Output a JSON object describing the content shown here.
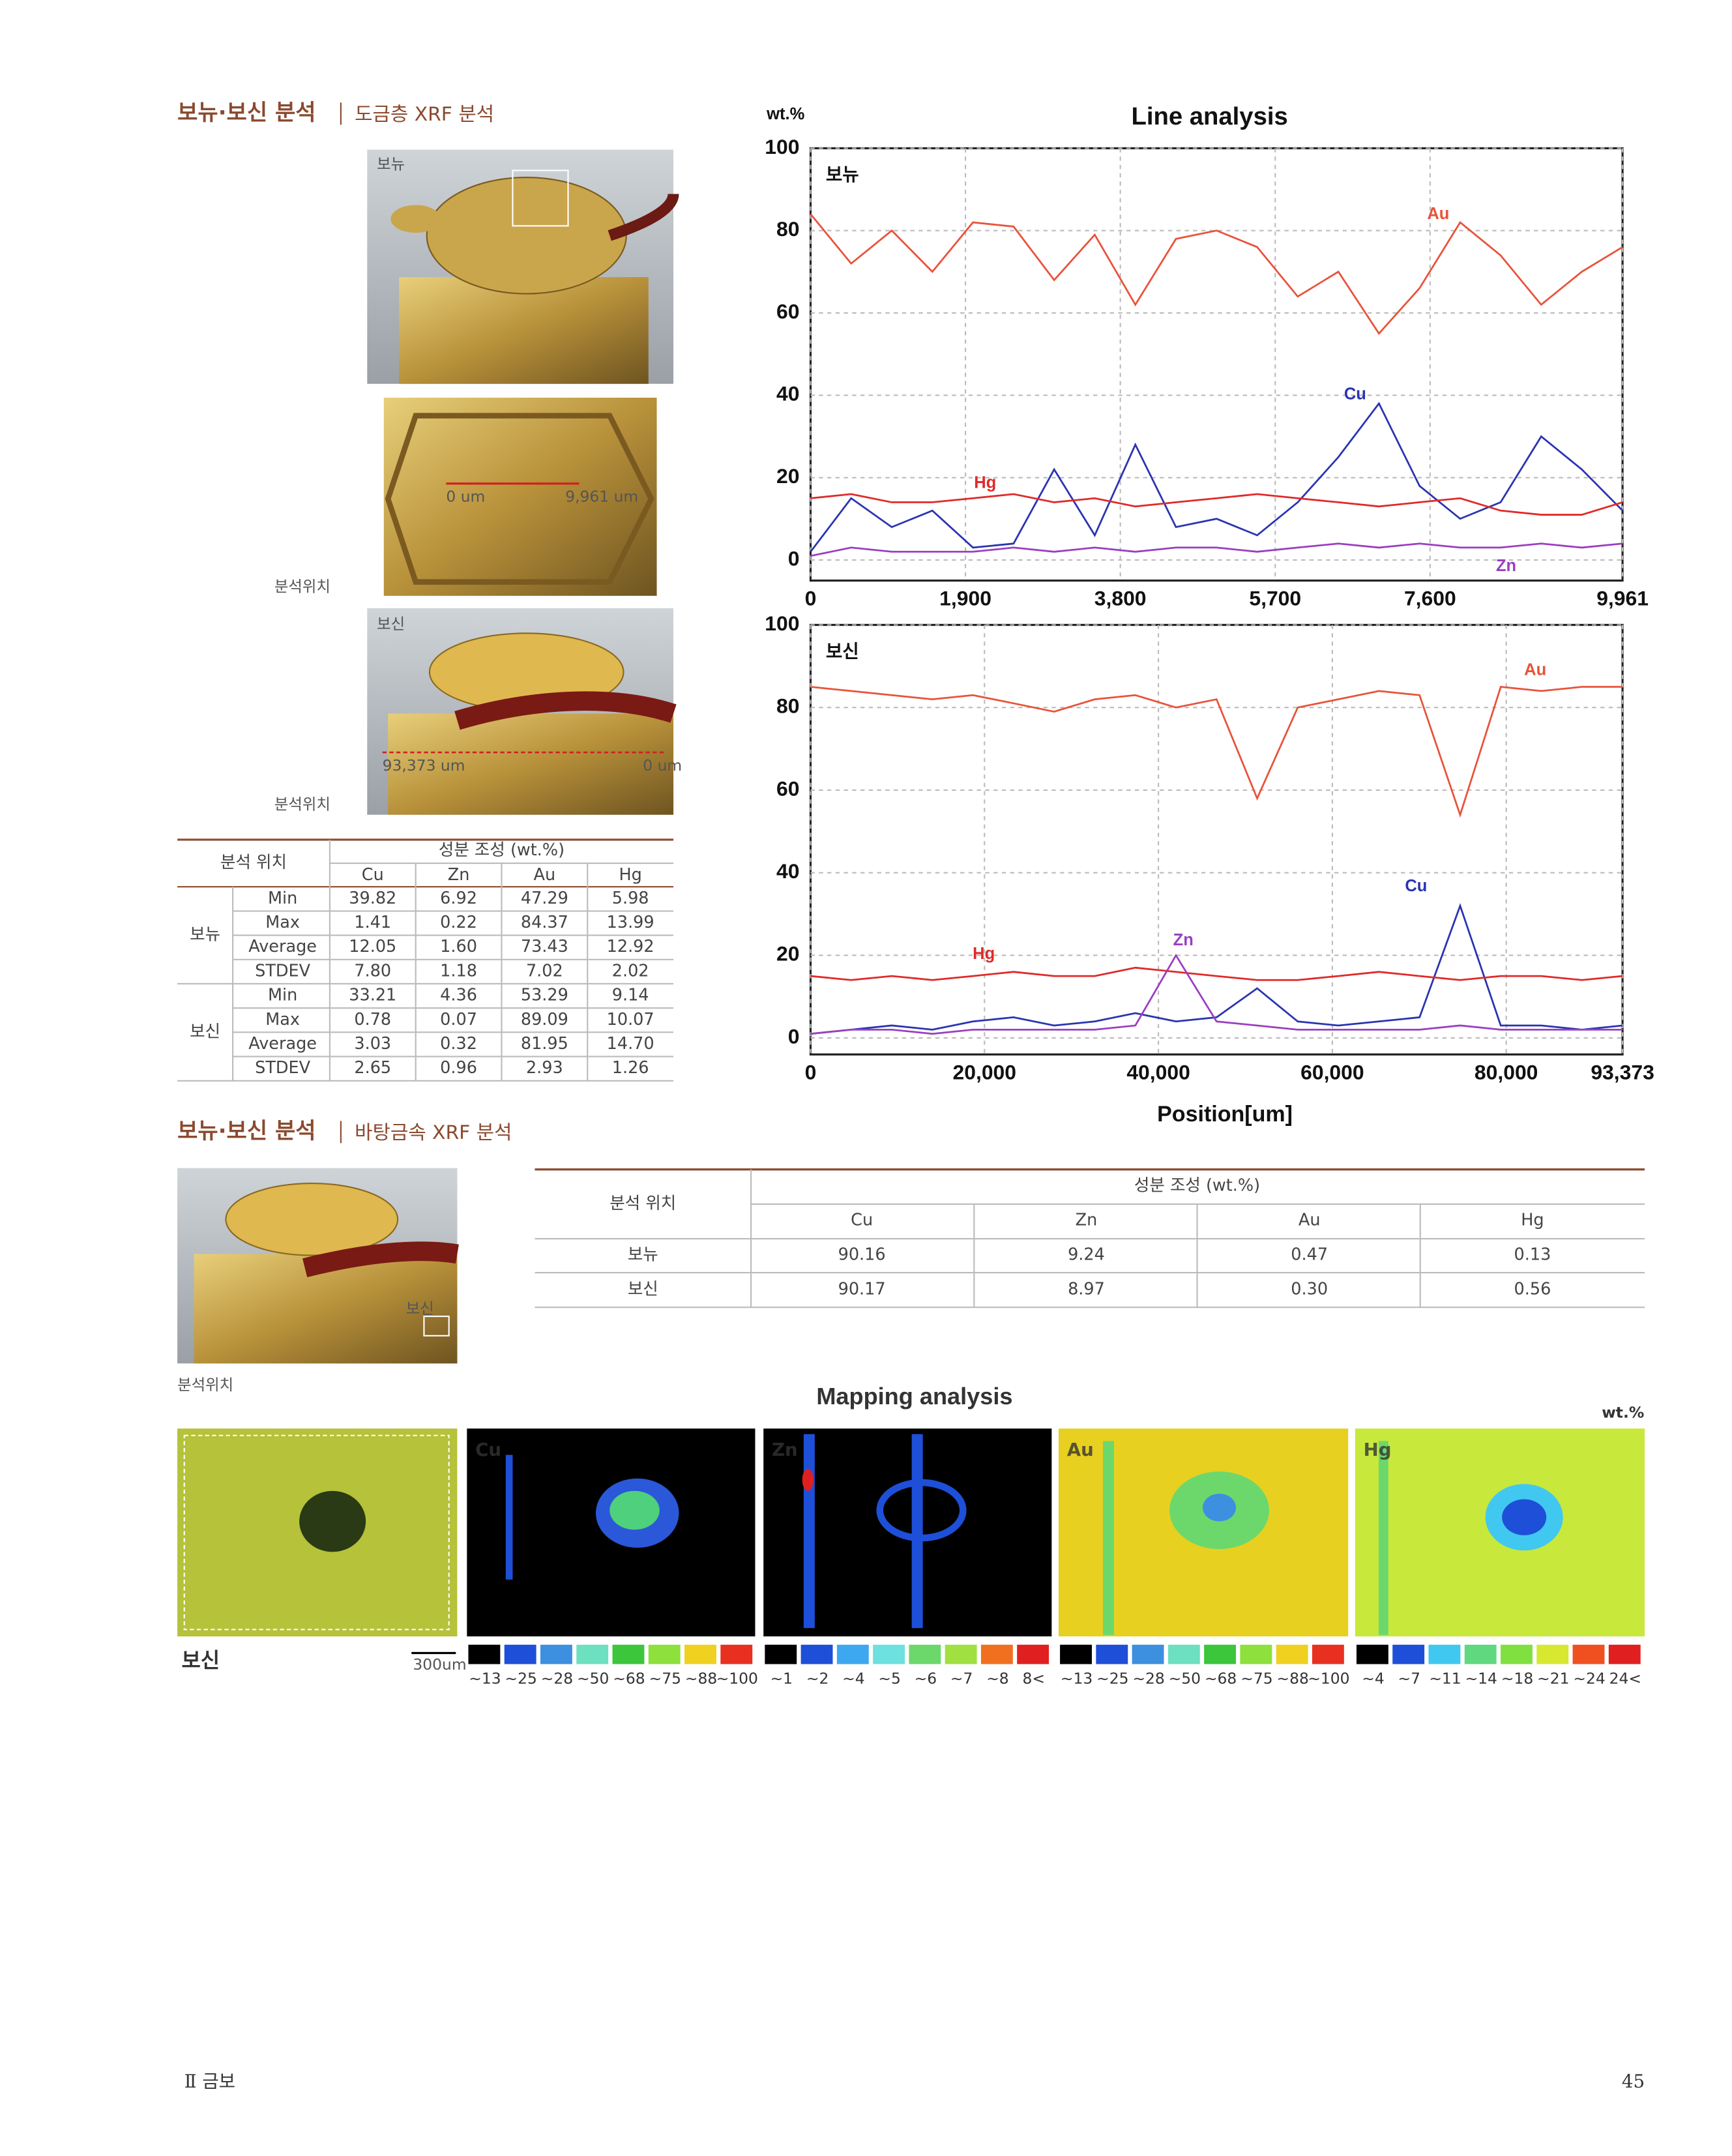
{
  "section1": {
    "title": "보뉴·보신 분석",
    "subtitle": "도금층 XRF 분석"
  },
  "photos": {
    "bonyu_label": "보뉴",
    "bonyu_location": "분석위치",
    "scale_start": "0 um",
    "scale_end": "9,961 um",
    "bosin_label": "보신",
    "bosin_location": "분석위치",
    "scan_start": "93,373 um",
    "scan_end": "0 um"
  },
  "table1": {
    "location_header": "분석 위치",
    "composition_header": "성분 조성 (wt.%)",
    "columns": [
      "Cu",
      "Zn",
      "Au",
      "Hg"
    ],
    "groups": [
      {
        "name": "보뉴",
        "rows": [
          {
            "stat": "Min",
            "values": [
              "39.82",
              "6.92",
              "47.29",
              "5.98"
            ]
          },
          {
            "stat": "Max",
            "values": [
              "1.41",
              "0.22",
              "84.37",
              "13.99"
            ]
          },
          {
            "stat": "Average",
            "values": [
              "12.05",
              "1.60",
              "73.43",
              "12.92"
            ]
          },
          {
            "stat": "STDEV",
            "values": [
              "7.80",
              "1.18",
              "7.02",
              "2.02"
            ]
          }
        ]
      },
      {
        "name": "보신",
        "rows": [
          {
            "stat": "Min",
            "values": [
              "33.21",
              "4.36",
              "53.29",
              "9.14"
            ]
          },
          {
            "stat": "Max",
            "values": [
              "0.78",
              "0.07",
              "89.09",
              "10.07"
            ]
          },
          {
            "stat": "Average",
            "values": [
              "3.03",
              "0.32",
              "81.95",
              "14.70"
            ]
          },
          {
            "stat": "STDEV",
            "values": [
              "2.65",
              "0.96",
              "2.93",
              "1.26"
            ]
          }
        ]
      }
    ]
  },
  "section2": {
    "title": "보뉴·보신 분석",
    "subtitle": "바탕금속 XRF 분석"
  },
  "photo2": {
    "label": "보신",
    "location": "분석위치"
  },
  "table2": {
    "location_header": "분석 위치",
    "composition_header": "성분 조성 (wt.%)",
    "columns": [
      "Cu",
      "Zn",
      "Au",
      "Hg"
    ],
    "rows": [
      {
        "location": "보뉴",
        "values": [
          "90.16",
          "9.24",
          "0.47",
          "0.13"
        ]
      },
      {
        "location": "보신",
        "values": [
          "90.17",
          "8.97",
          "0.30",
          "0.56"
        ]
      }
    ]
  },
  "mapping": {
    "title": "Mapping analysis",
    "unit": "wt.%",
    "sample_label": "보신",
    "scale": "300um",
    "maps": [
      {
        "element": "Cu",
        "legend": [
          "~13",
          "~25",
          "~28",
          "~50",
          "~68",
          "~75",
          "~88",
          "~100"
        ]
      },
      {
        "element": "Zn",
        "legend": [
          "~1",
          "~2",
          "~4",
          "~5",
          "~6",
          "~7",
          "~8",
          "8<"
        ]
      },
      {
        "element": "Au",
        "legend": [
          "~13",
          "~25",
          "~28",
          "~50",
          "~68",
          "~75",
          "~88",
          "~100"
        ]
      },
      {
        "element": "Hg",
        "legend": [
          "~4",
          "~7",
          "~11",
          "~14",
          "~18",
          "~21",
          "~24",
          "24<"
        ]
      }
    ]
  },
  "chart_data": [
    {
      "type": "line",
      "title": "Line analysis",
      "y_label": "wt.%",
      "panel_label": "보뉴",
      "grid": true,
      "x": [
        0,
        498,
        996,
        1494,
        1992,
        2490,
        2988,
        3486,
        3984,
        4482,
        4980,
        5478,
        5976,
        6474,
        6972,
        7470,
        7968,
        8466,
        8964,
        9462,
        9961
      ],
      "xlim": [
        0,
        9961
      ],
      "xticks": [
        0,
        {
          "value": 1900,
          "label": "1,900"
        },
        {
          "value": 3800,
          "label": "3,800"
        },
        {
          "value": 5700,
          "label": "5,700"
        },
        {
          "value": 7600,
          "label": "7,600"
        },
        {
          "value": 9961,
          "label": "9,961"
        }
      ],
      "ylim": [
        -5,
        100
      ],
      "yticks": [
        0,
        20,
        40,
        60,
        80,
        100
      ],
      "series": [
        {
          "name": "Au",
          "color": "#e8533a",
          "values": [
            84,
            72,
            80,
            70,
            82,
            81,
            68,
            79,
            62,
            78,
            80,
            76,
            64,
            70,
            55,
            66,
            82,
            74,
            62,
            70,
            76
          ]
        },
        {
          "name": "Cu",
          "color": "#2a34b0",
          "values": [
            2,
            15,
            8,
            12,
            3,
            4,
            22,
            6,
            28,
            8,
            10,
            6,
            14,
            25,
            38,
            18,
            10,
            14,
            30,
            22,
            12
          ]
        },
        {
          "name": "Hg",
          "color": "#e02a2a",
          "values": [
            15,
            16,
            14,
            14,
            15,
            16,
            14,
            15,
            13,
            14,
            15,
            16,
            15,
            14,
            13,
            14,
            15,
            12,
            11,
            11,
            14
          ]
        },
        {
          "name": "Zn",
          "color": "#9a3fc0",
          "values": [
            1,
            3,
            2,
            2,
            2,
            3,
            2,
            3,
            2,
            3,
            3,
            2,
            3,
            4,
            3,
            4,
            3,
            3,
            4,
            3,
            4
          ]
        }
      ]
    },
    {
      "type": "line",
      "panel_label": "보신",
      "x_label": "Position[um]",
      "grid": true,
      "x": [
        0,
        4669,
        9337,
        14006,
        18675,
        23343,
        28012,
        32681,
        37349,
        42018,
        46687,
        51355,
        56024,
        60692,
        65361,
        70030,
        74698,
        79367,
        84036,
        88704,
        93373
      ],
      "xlim": [
        0,
        93373
      ],
      "xticks": [
        0,
        {
          "value": 20000,
          "label": "20,000"
        },
        {
          "value": 40000,
          "label": "40,000"
        },
        {
          "value": 60000,
          "label": "60,000"
        },
        {
          "value": 80000,
          "label": "80,000"
        },
        {
          "value": 93373,
          "label": "93,373"
        }
      ],
      "ylim": [
        -4,
        100
      ],
      "yticks": [
        0,
        20,
        40,
        60,
        80,
        100
      ],
      "series": [
        {
          "name": "Au",
          "color": "#e8533a",
          "values": [
            85,
            84,
            83,
            82,
            83,
            81,
            79,
            82,
            83,
            80,
            82,
            58,
            80,
            82,
            84,
            83,
            54,
            85,
            84,
            85,
            85
          ]
        },
        {
          "name": "Cu",
          "color": "#2a34b0",
          "values": [
            1,
            2,
            3,
            2,
            4,
            5,
            3,
            4,
            6,
            4,
            5,
            12,
            4,
            3,
            4,
            5,
            32,
            3,
            3,
            2,
            3
          ]
        },
        {
          "name": "Hg",
          "color": "#e02a2a",
          "values": [
            15,
            14,
            15,
            14,
            15,
            16,
            15,
            15,
            17,
            16,
            15,
            14,
            14,
            15,
            16,
            15,
            14,
            15,
            15,
            14,
            15
          ]
        },
        {
          "name": "Zn",
          "color": "#9a3fc0",
          "values": [
            1,
            2,
            2,
            1,
            2,
            2,
            2,
            2,
            3,
            20,
            4,
            3,
            2,
            2,
            2,
            2,
            3,
            2,
            2,
            2,
            2
          ]
        }
      ]
    }
  ],
  "footer": {
    "chapter": "Ⅱ 금보",
    "page": "45"
  }
}
